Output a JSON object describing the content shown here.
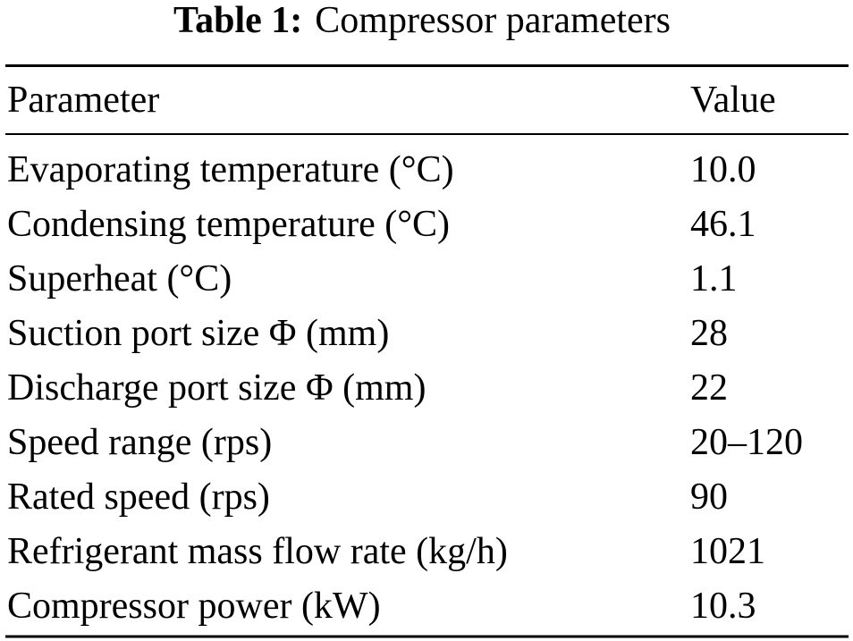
{
  "caption": {
    "label": "Table 1:",
    "title": "Compressor parameters"
  },
  "table": {
    "header": [
      "Parameter",
      "Value"
    ],
    "rows": [
      [
        "Evaporating temperature (°C)",
        "10.0"
      ],
      [
        "Condensing temperature (°C)",
        "46.1"
      ],
      [
        "Superheat (°C)",
        "1.1"
      ],
      [
        "Suction port size Φ (mm)",
        "28"
      ],
      [
        "Discharge port size Φ (mm)",
        "22"
      ],
      [
        "Speed range (rps)",
        "20–120"
      ],
      [
        "Rated speed (rps)",
        "90"
      ],
      [
        "Refrigerant mass flow rate (kg/h)",
        "1021"
      ],
      [
        "Compressor power (kW)",
        "10.3"
      ]
    ]
  }
}
